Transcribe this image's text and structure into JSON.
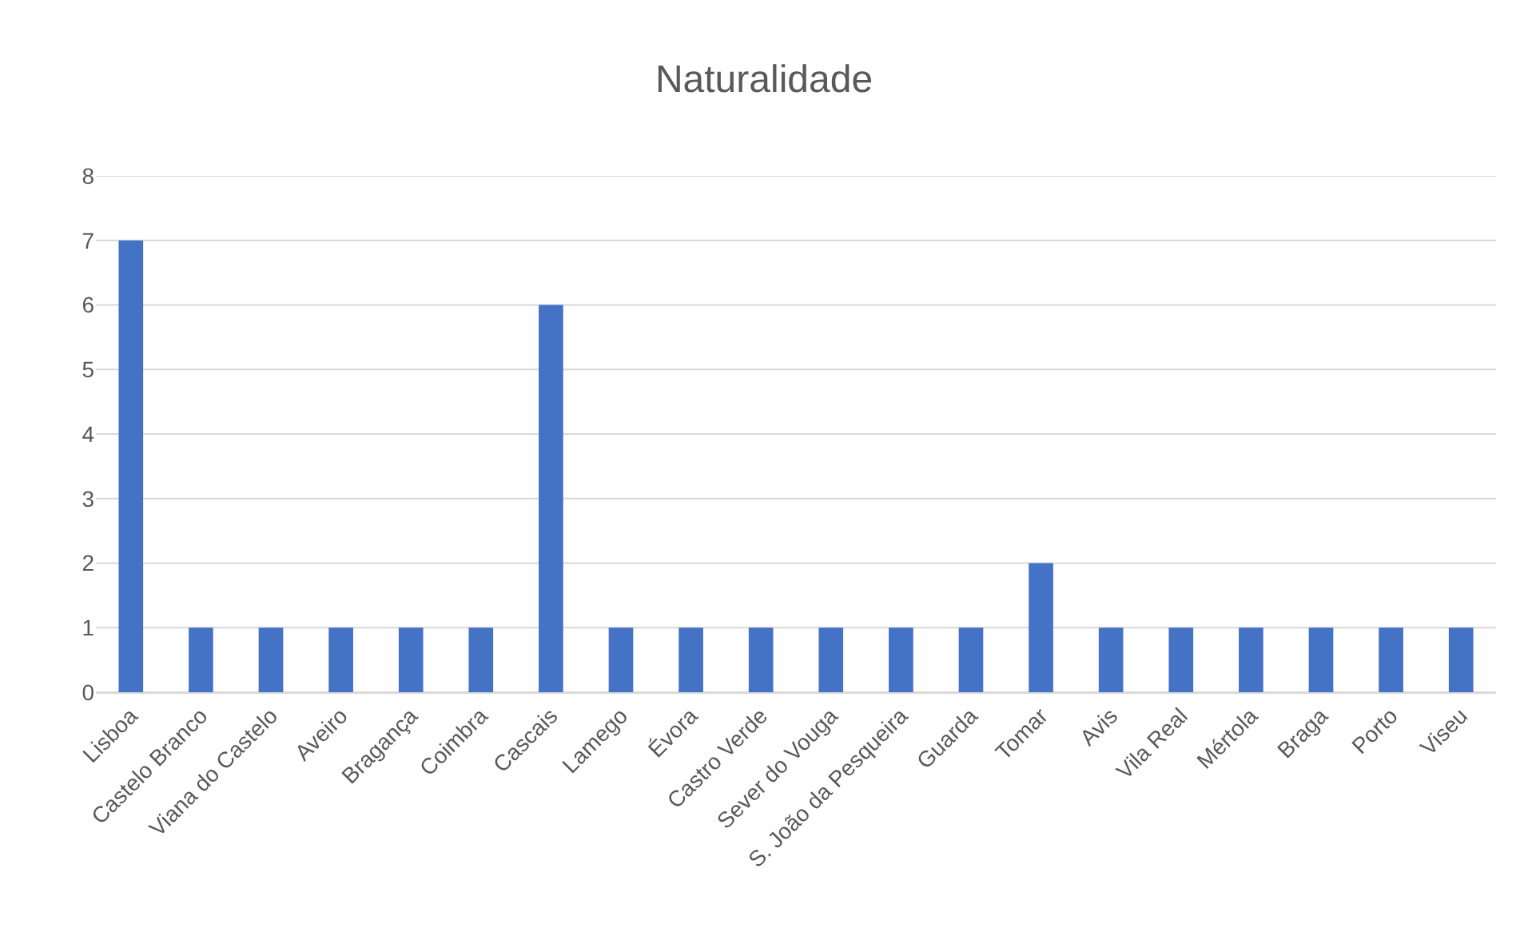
{
  "chart_data": {
    "type": "bar",
    "title": "Naturalidade",
    "categories": [
      "Lisboa",
      "Castelo Branco",
      "Viana do Castelo",
      "Aveiro",
      "Bragança",
      "Coimbra",
      "Cascais",
      "Lamego",
      "Évora",
      "Castro Verde",
      "Sever do Vouga",
      "S. João da Pesqueira",
      "Guarda",
      "Tomar",
      "Avis",
      "Vila Real",
      "Mértola",
      "Braga",
      "Porto",
      "Viseu"
    ],
    "values": [
      7,
      1,
      1,
      1,
      1,
      1,
      6,
      1,
      1,
      1,
      1,
      1,
      1,
      2,
      1,
      1,
      1,
      1,
      1,
      1
    ],
    "color": "#4472c4",
    "ylim": [
      0,
      8
    ],
    "yticks": [
      0,
      1,
      2,
      3,
      4,
      5,
      6,
      7,
      8
    ],
    "grid": "y"
  }
}
